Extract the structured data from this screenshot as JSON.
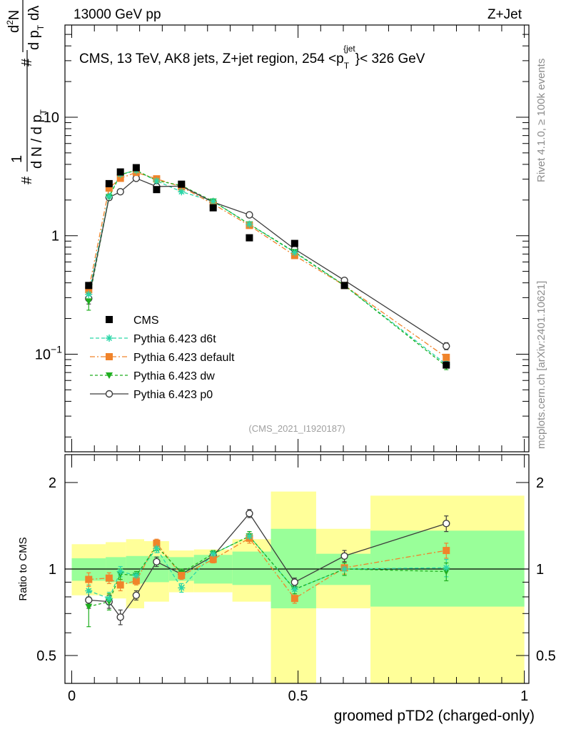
{
  "header": {
    "energy": "13000 GeV pp",
    "process": "Z+Jet"
  },
  "side_labels": {
    "rivet": "Rivet 4.1.0, ≥ 100k events",
    "mcplots": "mcplots.cern.ch [arXiv:2401.10621]"
  },
  "watermark": "(CMS_2021_I1920187)",
  "colors": {
    "cms": "#000000",
    "d6t": "#2bd6a8",
    "default": "#f0832a",
    "dw": "#1fae1f",
    "p0": "#3c3c3c",
    "band_outer": "#ffff99",
    "band_inner": "#99ff99"
  },
  "chart_data": [
    {
      "type": "scatter",
      "title": "CMS, 13 TeV, AK8 jets, Z+jet region, 254 <p_T^{jet}< 326 GeV",
      "title_text": {
        "prefix": "CMS, 13 TeV, AK8 jets, Z+jet region, 254 <p",
        "sub": "T",
        "sup": "{jet",
        "suffix": "}< 326 GeV"
      },
      "ylabel": "1/(dN/dp_T) · d²N/(dp_T dλ)",
      "ylabel_text": {
        "one": "1",
        "hash": "#",
        "dn": "d N / d p",
        "sub_t": "T",
        "d2n": "d",
        "two": "2",
        "n": "N",
        "dpt": "d p",
        "dl": "dλ"
      },
      "yscale": "log",
      "ylim": [
        0.015,
        60
      ],
      "xlim": [
        -0.015,
        1.01
      ],
      "yticks": [
        {
          "v": 0.1,
          "label": "10",
          "exp": "−1"
        },
        {
          "v": 1,
          "label": "1"
        },
        {
          "v": 10,
          "label": "10"
        }
      ],
      "legend_position": "middle-left",
      "x": [
        0.0375,
        0.0825,
        0.1075,
        0.1425,
        0.1875,
        0.2425,
        0.3125,
        0.3925,
        0.4925,
        0.6025,
        0.8275
      ],
      "series": [
        {
          "name": "CMS",
          "key": "cms",
          "style": "square",
          "values": [
            0.38,
            2.75,
            3.45,
            3.75,
            2.45,
            2.72,
            1.72,
            0.96,
            0.86,
            0.38,
            0.081
          ]
        },
        {
          "name": "Pythia 6.423 d6t",
          "key": "d6t",
          "style": "star",
          "dash": "5,3",
          "values": [
            0.32,
            2.15,
            3.3,
            3.55,
            2.9,
            2.35,
            1.95,
            1.25,
            0.72,
            0.38,
            0.082
          ],
          "errors": [
            0.04,
            0.1,
            0.1,
            0.1,
            0.08,
            0.07,
            0.05,
            0.04,
            0.02,
            0.015,
            0.005
          ]
        },
        {
          "name": "Pythia 6.423 default",
          "key": "default",
          "style": "square",
          "dash": "7,3,2,3",
          "values": [
            0.35,
            2.52,
            3.05,
            3.42,
            3.02,
            2.58,
            1.85,
            1.22,
            0.68,
            0.38,
            0.094
          ],
          "errors": [
            0.04,
            0.1,
            0.1,
            0.1,
            0.08,
            0.07,
            0.05,
            0.04,
            0.02,
            0.015,
            0.005
          ]
        },
        {
          "name": "Pythia 6.423 dw",
          "key": "dw",
          "style": "triangle",
          "dash": "4,3",
          "values": [
            0.28,
            2.12,
            3.28,
            3.56,
            2.92,
            2.65,
            1.95,
            1.25,
            0.73,
            0.38,
            0.079
          ],
          "errors": [
            0.045,
            0.1,
            0.1,
            0.1,
            0.08,
            0.07,
            0.05,
            0.04,
            0.02,
            0.015,
            0.005
          ]
        },
        {
          "name": "Pythia 6.423 p0",
          "key": "p0",
          "style": "circle",
          "dash": "",
          "values": [
            0.295,
            2.1,
            2.35,
            3.05,
            2.6,
            2.62,
            1.92,
            1.5,
            0.77,
            0.42,
            0.117
          ],
          "errors": [
            0.03,
            0.1,
            0.1,
            0.1,
            0.08,
            0.07,
            0.05,
            0.04,
            0.02,
            0.02,
            0.008
          ]
        }
      ]
    },
    {
      "type": "scatter",
      "ylabel": "Ratio to CMS",
      "xlabel": "groomed pTD2 (charged-only)",
      "yscale": "log",
      "ylim": [
        0.4,
        2.5
      ],
      "xlim": [
        -0.015,
        1.01
      ],
      "yticks": [
        {
          "v": 0.5,
          "label": "0.5"
        },
        {
          "v": 1,
          "label": "1"
        },
        {
          "v": 2,
          "label": "2"
        }
      ],
      "xticks": [
        {
          "v": 0,
          "label": "0"
        },
        {
          "v": 0.5,
          "label": "0.5"
        },
        {
          "v": 1,
          "label": "1"
        }
      ],
      "bands": [
        {
          "x0": 0.0,
          "x1": 0.075,
          "in_lo": 0.91,
          "in_hi": 1.09,
          "out_lo": 0.81,
          "out_hi": 1.22
        },
        {
          "x0": 0.075,
          "x1": 0.12,
          "in_lo": 0.9,
          "in_hi": 1.1,
          "out_lo": 0.79,
          "out_hi": 1.24
        },
        {
          "x0": 0.12,
          "x1": 0.16,
          "in_lo": 0.89,
          "in_hi": 1.11,
          "out_lo": 0.73,
          "out_hi": 1.27
        },
        {
          "x0": 0.16,
          "x1": 0.215,
          "in_lo": 0.9,
          "in_hi": 1.11,
          "out_lo": 0.77,
          "out_hi": 1.25
        },
        {
          "x0": 0.215,
          "x1": 0.27,
          "in_lo": 0.91,
          "in_hi": 1.1,
          "out_lo": 0.83,
          "out_hi": 1.16
        },
        {
          "x0": 0.27,
          "x1": 0.355,
          "in_lo": 0.89,
          "in_hi": 1.12,
          "out_lo": 0.83,
          "out_hi": 1.17
        },
        {
          "x0": 0.355,
          "x1": 0.44,
          "in_lo": 0.88,
          "in_hi": 1.15,
          "out_lo": 0.77,
          "out_hi": 1.27
        },
        {
          "x0": 0.44,
          "x1": 0.54,
          "in_lo": 0.73,
          "in_hi": 1.38,
          "out_lo": 0.4,
          "out_hi": 1.86
        },
        {
          "x0": 0.54,
          "x1": 0.66,
          "in_lo": 0.88,
          "in_hi": 1.13,
          "out_lo": 0.73,
          "out_hi": 1.38
        },
        {
          "x0": 0.66,
          "x1": 1.0,
          "in_lo": 0.74,
          "in_hi": 1.36,
          "out_lo": 0.4,
          "out_hi": 1.8
        }
      ],
      "x": [
        0.0375,
        0.0825,
        0.1075,
        0.1425,
        0.1875,
        0.2425,
        0.3125,
        0.3925,
        0.4925,
        0.6025,
        0.8275
      ],
      "series": [
        {
          "key": "d6t",
          "values": [
            0.84,
            0.79,
            0.98,
            0.95,
            1.18,
            0.86,
            1.13,
            1.3,
            0.85,
            1.0,
            1.01
          ],
          "errors": [
            0.04,
            0.04,
            0.04,
            0.03,
            0.04,
            0.03,
            0.03,
            0.05,
            0.03,
            0.05,
            0.07
          ]
        },
        {
          "key": "default",
          "values": [
            0.92,
            0.93,
            0.88,
            0.91,
            1.23,
            0.95,
            1.08,
            1.28,
            0.79,
            1.01,
            1.16
          ],
          "errors": [
            0.05,
            0.04,
            0.04,
            0.03,
            0.04,
            0.03,
            0.03,
            0.05,
            0.03,
            0.05,
            0.07
          ]
        },
        {
          "key": "dw",
          "values": [
            0.74,
            0.77,
            0.96,
            0.95,
            1.2,
            0.97,
            1.13,
            1.3,
            0.85,
            1.0,
            0.98
          ],
          "errors": [
            0.11,
            0.05,
            0.04,
            0.03,
            0.04,
            0.03,
            0.03,
            0.05,
            0.03,
            0.05,
            0.07
          ]
        },
        {
          "key": "p0",
          "values": [
            0.78,
            0.77,
            0.68,
            0.81,
            1.06,
            0.96,
            1.11,
            1.56,
            0.9,
            1.11,
            1.44
          ],
          "errors": [
            0.05,
            0.04,
            0.04,
            0.03,
            0.04,
            0.03,
            0.03,
            0.05,
            0.03,
            0.05,
            0.09
          ]
        }
      ]
    }
  ]
}
